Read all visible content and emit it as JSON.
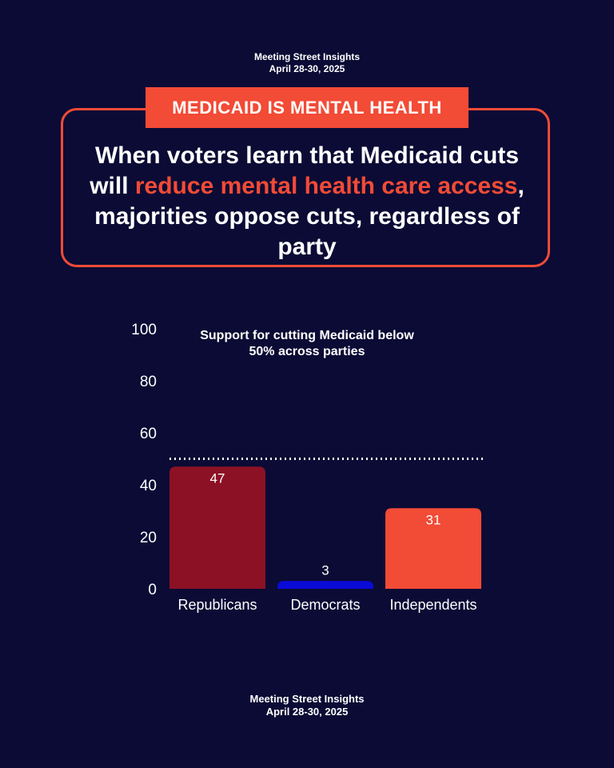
{
  "source": {
    "name": "Meeting Street Insights",
    "dates": "April 28-30, 2025"
  },
  "tag": "MEDICAID IS MENTAL HEALTH",
  "headline": {
    "before": "When voters learn that Medicaid cuts will ",
    "highlight": "reduce mental health care access",
    "after": ", majorities oppose cuts, regardless of party"
  },
  "colors": {
    "background": "#0b0b35",
    "accent": "#f24b36",
    "republicans": "#8c1125",
    "democrats": "#0a0ad8",
    "independents": "#f24b36"
  },
  "chart_data": {
    "type": "bar",
    "title": "Support for cutting Medicaid below 50% across parties",
    "categories": [
      "Republicans",
      "Democrats",
      "Independents"
    ],
    "values": [
      47,
      3,
      31
    ],
    "ylim": [
      0,
      100
    ],
    "yticks": [
      0,
      20,
      40,
      60,
      80,
      100
    ],
    "reference_line": 50,
    "xlabel": "",
    "ylabel": "",
    "grid": false
  }
}
